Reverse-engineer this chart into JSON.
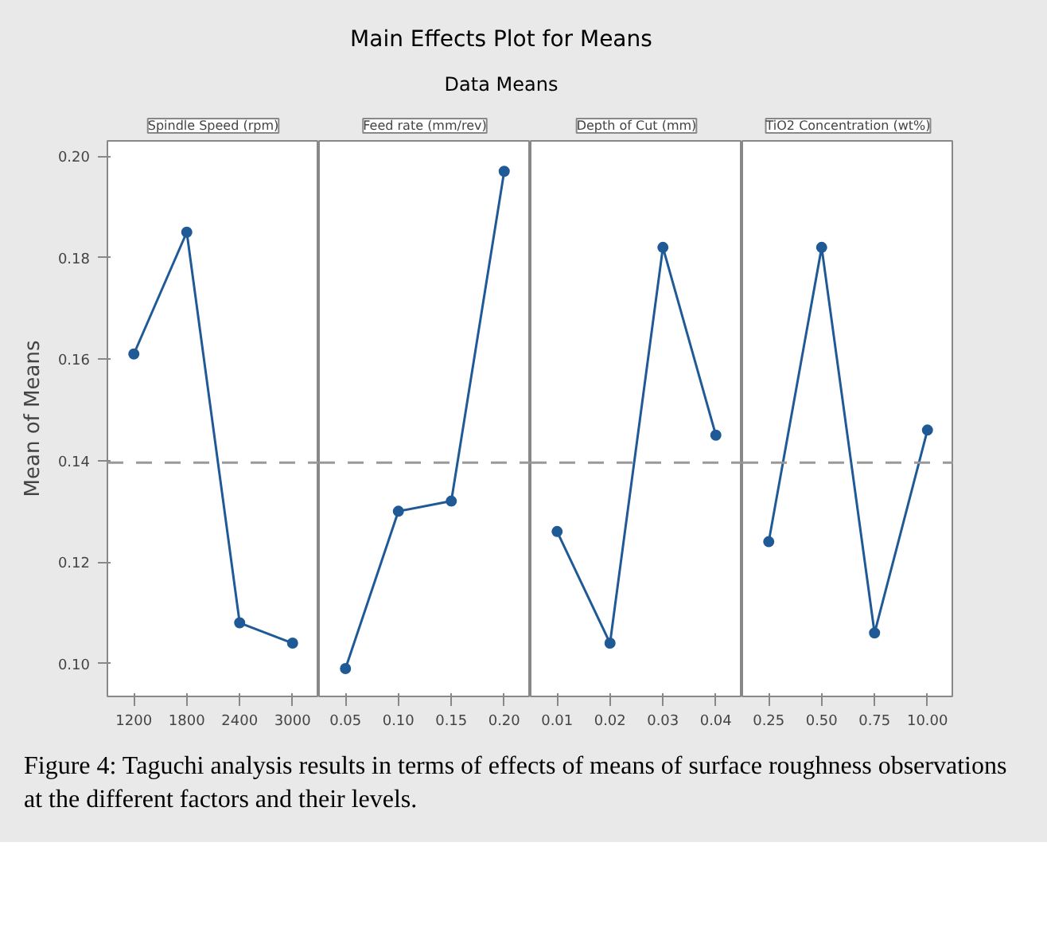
{
  "chart_data": [
    {
      "type": "line",
      "title": "Spindle Speed (rpm)",
      "ylabel": "Mean of Means",
      "categories": [
        "1200",
        "1800",
        "2400",
        "3000"
      ],
      "series": [
        {
          "color": "#1f5a96",
          "values": [
            0.161,
            0.185,
            0.108,
            0.104
          ]
        }
      ],
      "ylim": [
        0.0935,
        0.203
      ],
      "yticks": [
        {
          "value": 0.1,
          "label": "0.10"
        },
        0.12,
        0.14,
        0.16,
        0.18,
        {
          "value": 0.2,
          "label": "0.20"
        }
      ],
      "ref_lines": [
        {
          "axis": "y",
          "value": 0.1396,
          "color": "#999999",
          "line_style": "dashed"
        }
      ],
      "marker": "circle",
      "grid": false,
      "annotations": [
        "Main Effects Plot for Means",
        "Data Means",
        "Figure 4: Taguchi analysis results in terms of effects of means of surface roughness observations at the different factors and their levels."
      ]
    },
    {
      "type": "line",
      "title": "Feed rate (mm/rev)",
      "categories": [
        "0.05",
        "0.10",
        "0.15",
        "0.20"
      ],
      "series": [
        {
          "color": "#1f5a96",
          "values": [
            0.099,
            0.13,
            0.132,
            0.197
          ]
        }
      ],
      "ylim": [
        0.0935,
        0.203
      ],
      "tick_labels": "x",
      "ref_lines": [
        {
          "axis": "y",
          "value": 0.1396,
          "color": "#999999",
          "line_style": "dashed"
        }
      ],
      "marker": "circle",
      "grid": false
    },
    {
      "type": "line",
      "title": "Depth of Cut (mm)",
      "categories": [
        "0.01",
        "0.02",
        "0.03",
        "0.04"
      ],
      "series": [
        {
          "color": "#1f5a96",
          "values": [
            0.126,
            0.104,
            0.182,
            0.145
          ]
        }
      ],
      "ylim": [
        0.0935,
        0.203
      ],
      "tick_labels": "x",
      "ref_lines": [
        {
          "axis": "y",
          "value": 0.1396,
          "color": "#999999",
          "line_style": "dashed"
        }
      ],
      "marker": "circle",
      "grid": false
    },
    {
      "type": "line",
      "title": "TiO2 Concentration (wt%)",
      "categories": [
        "0.25",
        "0.50",
        "0.75",
        "10.00"
      ],
      "series": [
        {
          "color": "#1f5a96",
          "values": [
            0.124,
            0.182,
            0.106,
            0.146
          ]
        }
      ],
      "ylim": [
        0.0935,
        0.203
      ],
      "tick_labels": "x",
      "ref_lines": [
        {
          "axis": "y",
          "value": 0.1396,
          "color": "#999999",
          "line_style": "dashed"
        }
      ],
      "marker": "circle",
      "grid": false
    }
  ]
}
